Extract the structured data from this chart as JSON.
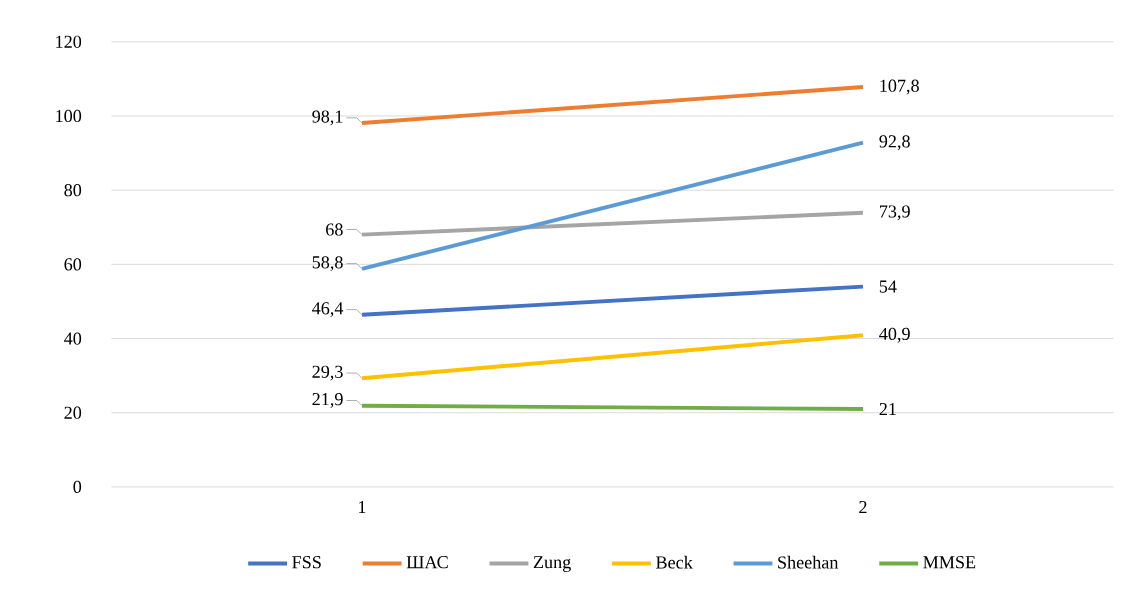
{
  "chart_data": {
    "type": "line",
    "categories": [
      "1",
      "2"
    ],
    "series": [
      {
        "name": "FSS",
        "color": "#4472c4",
        "values": [
          46.4,
          54
        ],
        "value_labels": [
          "46,4",
          "54"
        ]
      },
      {
        "name": "ШАС",
        "color": "#ed7d31",
        "values": [
          98.1,
          107.8
        ],
        "value_labels": [
          "98,1",
          "107,8"
        ]
      },
      {
        "name": "Zung",
        "color": "#a5a5a5",
        "values": [
          68,
          73.9
        ],
        "value_labels": [
          "68",
          "73,9"
        ]
      },
      {
        "name": "Beck",
        "color": "#ffc000",
        "values": [
          29.3,
          40.9
        ],
        "value_labels": [
          "29,3",
          "40,9"
        ]
      },
      {
        "name": "Sheehan",
        "color": "#5b9bd5",
        "values": [
          58.8,
          92.8
        ],
        "value_labels": [
          "58,8",
          "92,8"
        ]
      },
      {
        "name": "MMSE",
        "color": "#70ad47",
        "values": [
          21.9,
          21
        ],
        "value_labels": [
          "21,9",
          "21"
        ]
      }
    ],
    "ylim": [
      0,
      120
    ],
    "yticks": [
      0,
      20,
      40,
      60,
      80,
      100,
      120
    ],
    "grid": "y",
    "legend": "bottom",
    "marker": "none",
    "line_style": "solid"
  }
}
